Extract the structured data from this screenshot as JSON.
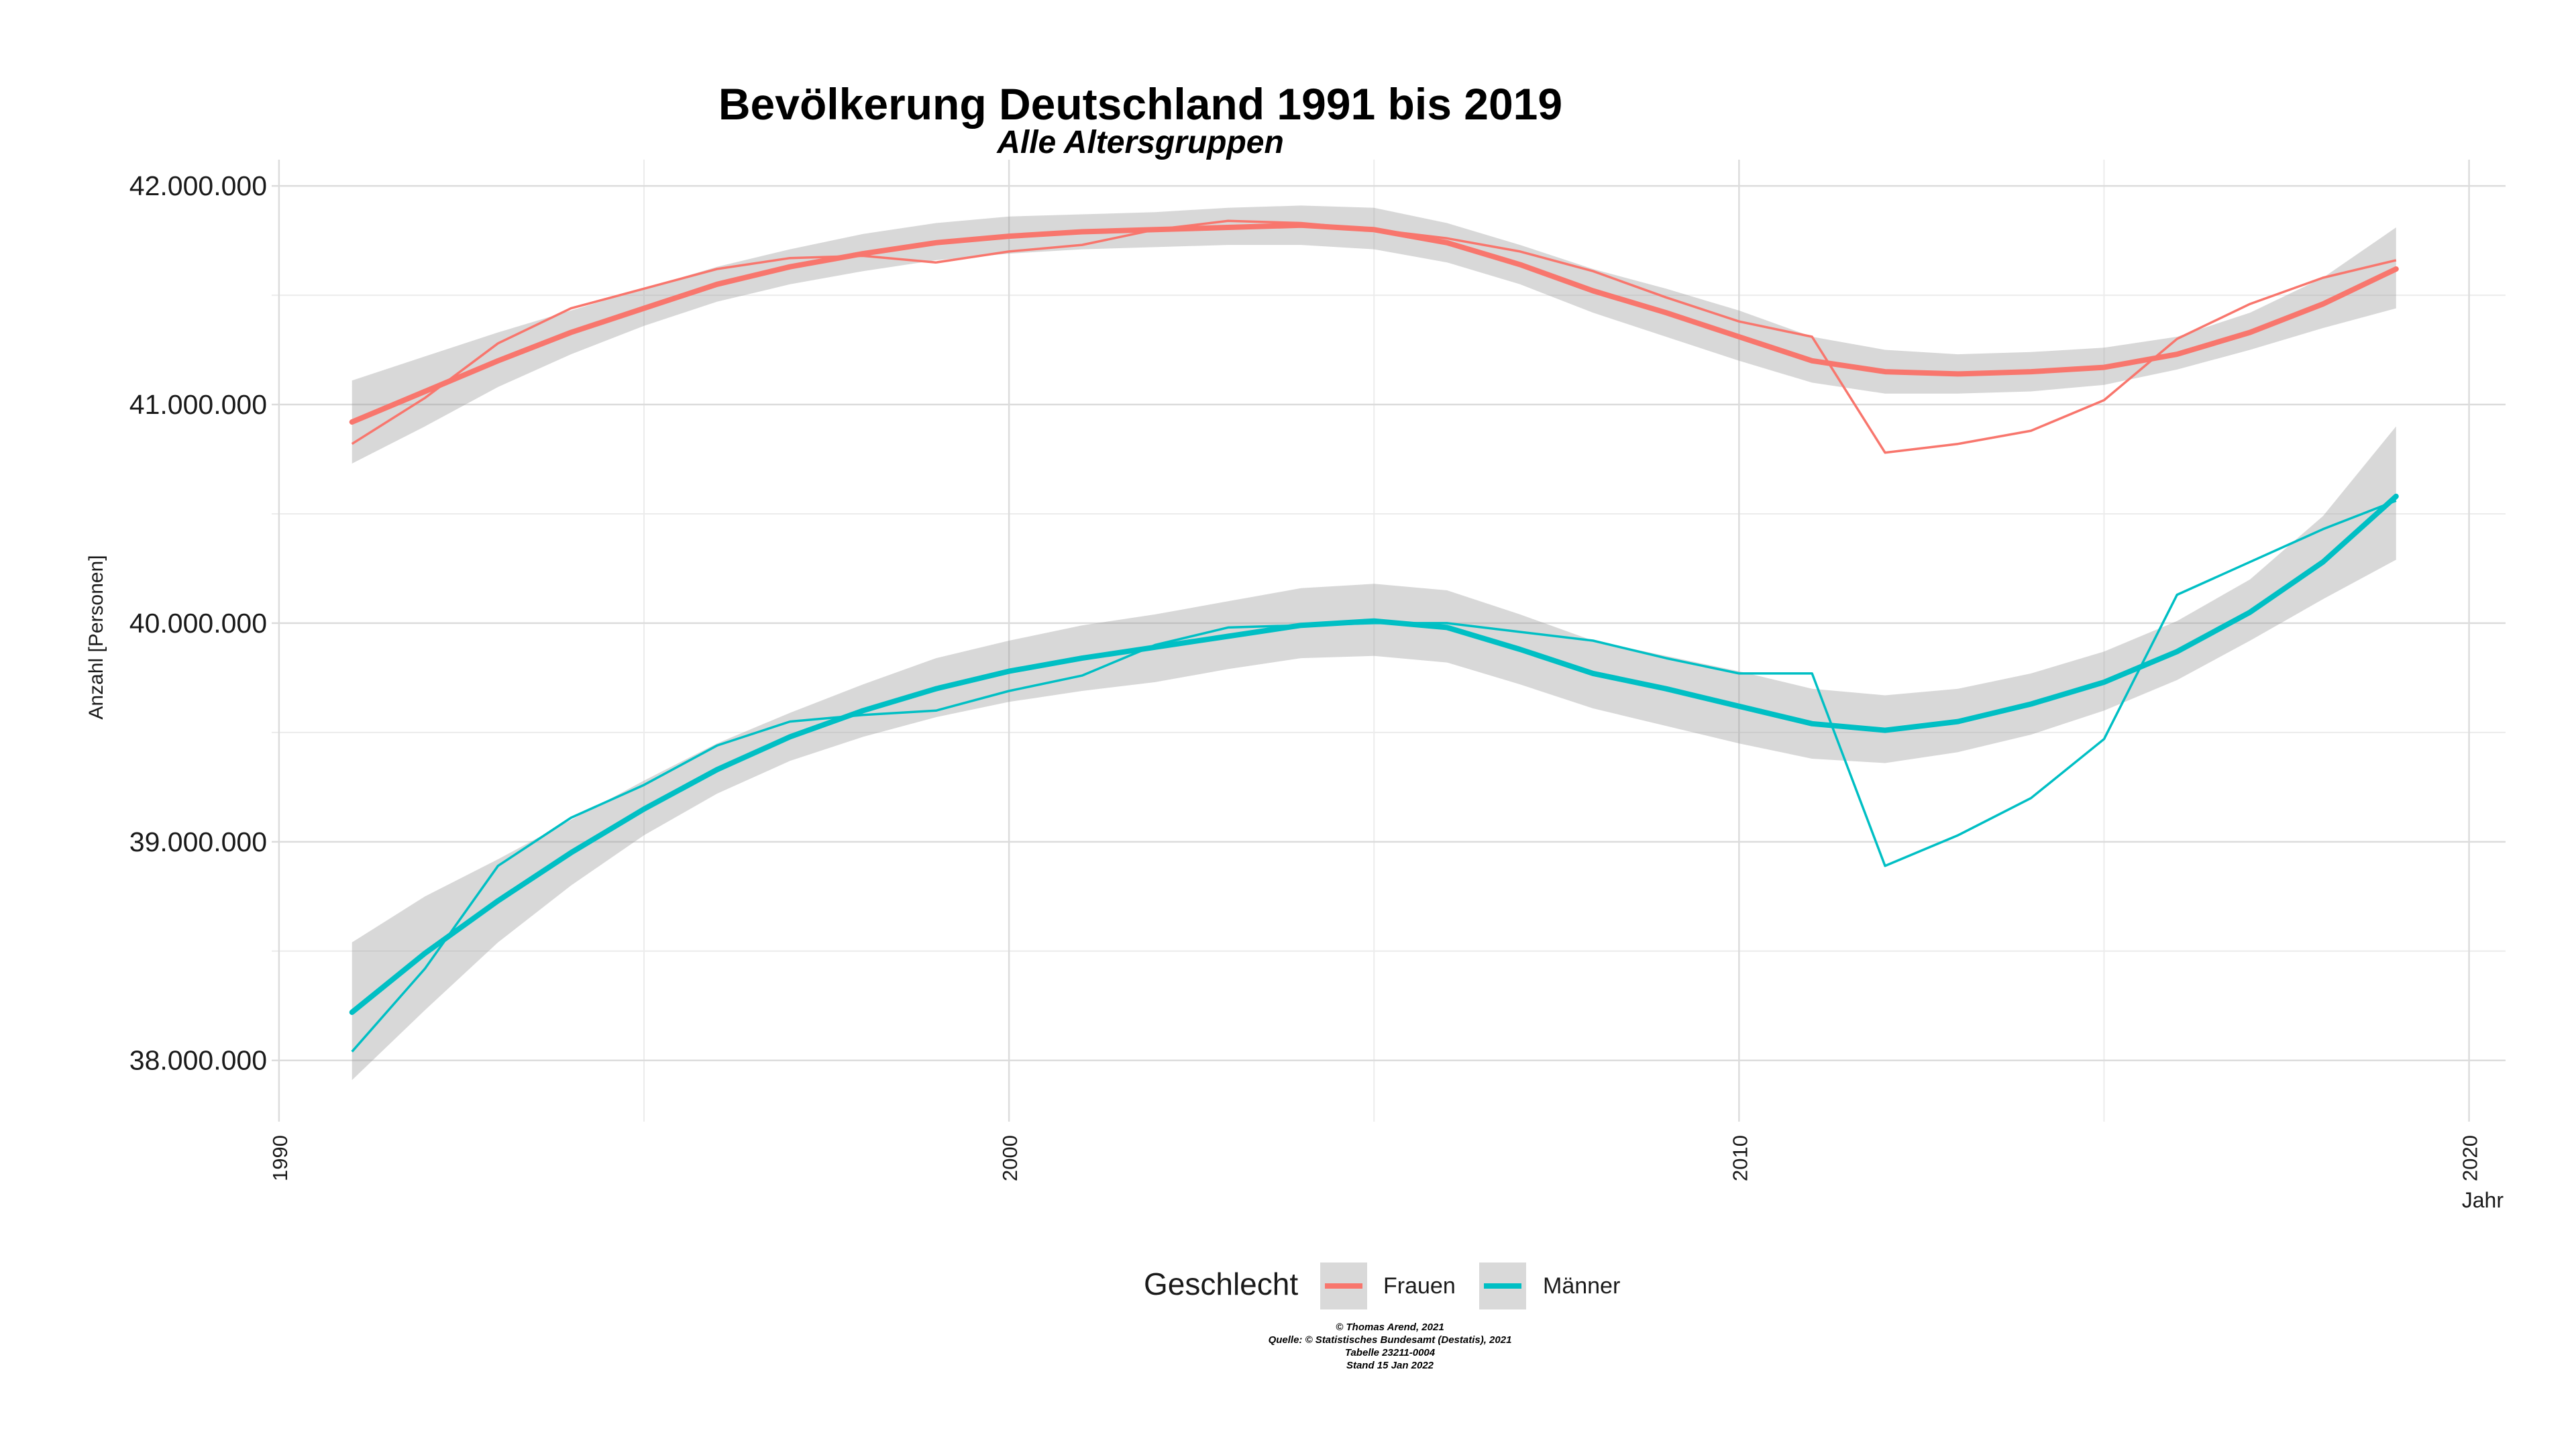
{
  "chart_data": {
    "type": "line",
    "title": "Bevölkerung Deutschland 1991 bis 2019",
    "subtitle": "Alle Altersgruppen",
    "xlabel": "Jahr",
    "ylabel": "Anzahl [Personen]",
    "xlim": [
      1989.9,
      2020.5
    ],
    "ylim": [
      37720000,
      42120000
    ],
    "x_ticks": [
      1990,
      2000,
      2010,
      2020
    ],
    "x_tick_labels": [
      "1990",
      "2000",
      "2010",
      "2020"
    ],
    "y_ticks": [
      38000000,
      39000000,
      40000000,
      41000000,
      42000000
    ],
    "y_tick_labels": [
      "38.000.000",
      "39.000.000",
      "40.000.000",
      "41.000.000",
      "42.000.000"
    ],
    "grid": true,
    "legend": {
      "title": "Geschlecht",
      "position": "bottom"
    },
    "x": [
      1991,
      1992,
      1993,
      1994,
      1995,
      1996,
      1997,
      1998,
      1999,
      2000,
      2001,
      2002,
      2003,
      2004,
      2005,
      2006,
      2007,
      2008,
      2009,
      2010,
      2011,
      2012,
      2013,
      2014,
      2015,
      2016,
      2017,
      2018,
      2019
    ],
    "series": [
      {
        "name": "Frauen",
        "color": "#F8766D",
        "values": [
          40820000,
          41030000,
          41280000,
          41440000,
          41530000,
          41620000,
          41670000,
          41680000,
          41650000,
          41700000,
          41730000,
          41800000,
          41840000,
          41830000,
          41800000,
          41760000,
          41700000,
          41610000,
          41490000,
          41380000,
          41310000,
          40780000,
          40820000,
          40880000,
          41020000,
          41300000,
          41460000,
          41580000,
          41660000
        ],
        "smooth": [
          40920000,
          41060000,
          41200000,
          41330000,
          41440000,
          41550000,
          41630000,
          41690000,
          41740000,
          41770000,
          41790000,
          41800000,
          41810000,
          41820000,
          41800000,
          41740000,
          41640000,
          41520000,
          41420000,
          41310000,
          41200000,
          41150000,
          41140000,
          41150000,
          41170000,
          41230000,
          41330000,
          41460000,
          41620000
        ],
        "ci_low": [
          40730000,
          40900000,
          41080000,
          41230000,
          41360000,
          41470000,
          41550000,
          41610000,
          41660000,
          41690000,
          41710000,
          41720000,
          41730000,
          41730000,
          41710000,
          41650000,
          41550000,
          41420000,
          41310000,
          41200000,
          41100000,
          41050000,
          41050000,
          41060000,
          41090000,
          41160000,
          41250000,
          41350000,
          41440000
        ],
        "ci_high": [
          41110000,
          41220000,
          41330000,
          41430000,
          41530000,
          41630000,
          41710000,
          41780000,
          41830000,
          41860000,
          41870000,
          41880000,
          41900000,
          41910000,
          41900000,
          41830000,
          41730000,
          41620000,
          41530000,
          41430000,
          41310000,
          41250000,
          41230000,
          41240000,
          41260000,
          41310000,
          41420000,
          41580000,
          41810000
        ]
      },
      {
        "name": "Männer",
        "color": "#00BFC4",
        "values": [
          38040000,
          38420000,
          38890000,
          39110000,
          39260000,
          39440000,
          39550000,
          39580000,
          39600000,
          39690000,
          39760000,
          39900000,
          39980000,
          39990000,
          40000000,
          40000000,
          39960000,
          39920000,
          39840000,
          39770000,
          39770000,
          38890000,
          39030000,
          39200000,
          39470000,
          40130000,
          40280000,
          40430000,
          40560000
        ],
        "smooth": [
          38220000,
          38490000,
          38730000,
          38950000,
          39150000,
          39330000,
          39480000,
          39600000,
          39700000,
          39780000,
          39840000,
          39890000,
          39940000,
          39990000,
          40010000,
          39980000,
          39880000,
          39770000,
          39700000,
          39620000,
          39540000,
          39510000,
          39550000,
          39630000,
          39730000,
          39870000,
          40050000,
          40280000,
          40580000
        ],
        "ci_low": [
          37910000,
          38230000,
          38540000,
          38800000,
          39030000,
          39220000,
          39370000,
          39480000,
          39570000,
          39640000,
          39690000,
          39730000,
          39790000,
          39840000,
          39850000,
          39820000,
          39720000,
          39610000,
          39530000,
          39450000,
          39380000,
          39360000,
          39410000,
          39490000,
          39600000,
          39740000,
          39920000,
          40110000,
          40290000
        ],
        "ci_high": [
          38540000,
          38750000,
          38920000,
          39100000,
          39280000,
          39450000,
          39590000,
          39720000,
          39840000,
          39920000,
          39990000,
          40040000,
          40100000,
          40160000,
          40180000,
          40150000,
          40040000,
          39920000,
          39850000,
          39780000,
          39700000,
          39670000,
          39700000,
          39770000,
          39870000,
          40010000,
          40200000,
          40490000,
          40900000
        ]
      }
    ],
    "caption_lines": [
      "© Thomas Arend, 2021",
      "Quelle: © Statistisches Bundesamt (Destatis), 2021",
      "Tabelle 23211-0004",
      "Stand 15 Jan 2022"
    ]
  }
}
